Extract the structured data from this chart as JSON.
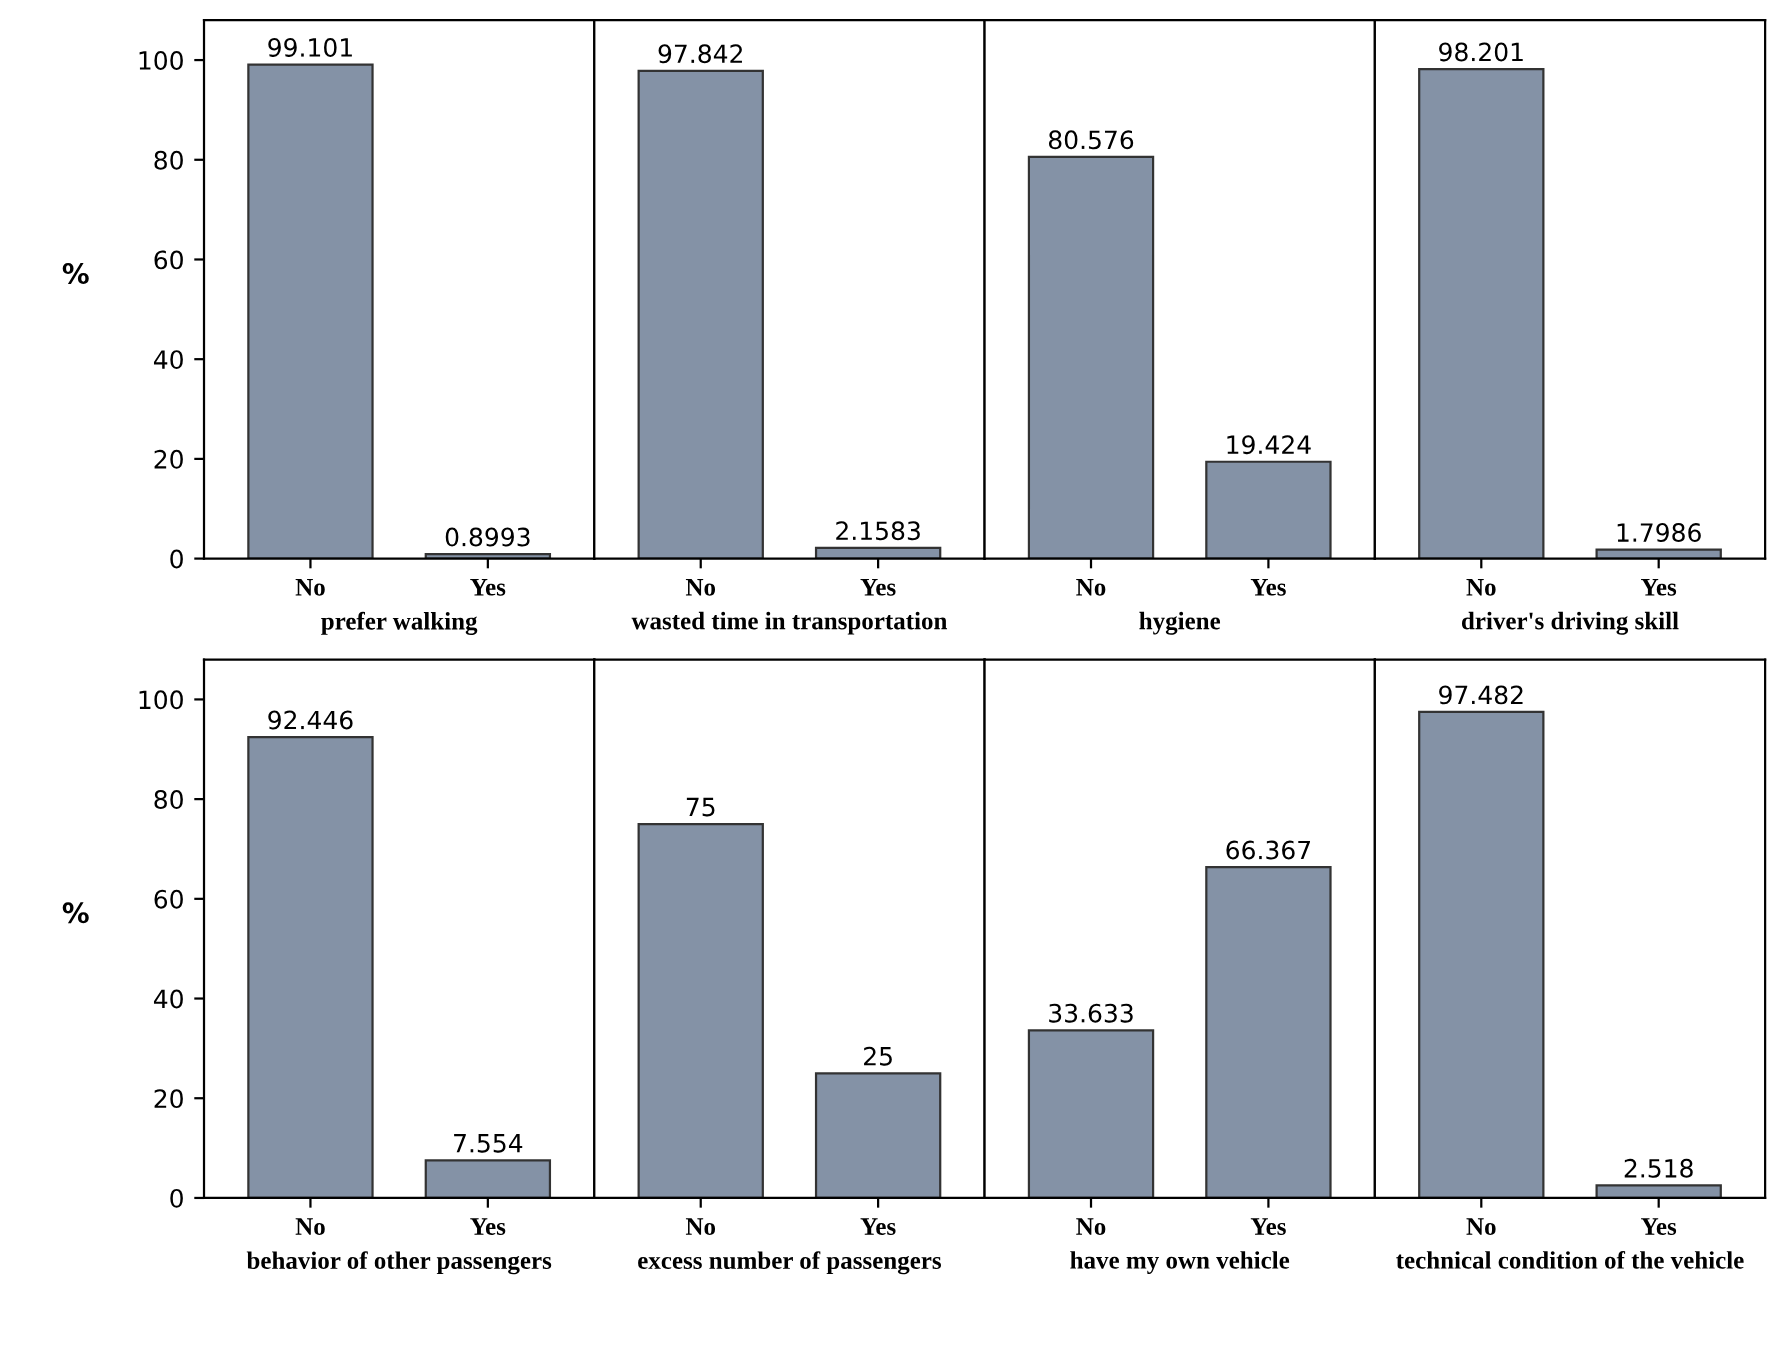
{
  "chart_data": [
    {
      "type": "bar",
      "xlabel": "prefer walking",
      "ylabel": "%",
      "categories": [
        "No",
        "Yes"
      ],
      "values": [
        99.101,
        0.8993
      ],
      "color": "#8492a6",
      "ylim": [
        0,
        108
      ],
      "yticks": [
        0,
        20,
        40,
        60,
        80,
        100
      ],
      "data_labels": true,
      "value_labels": [
        "99.101",
        "0.8993"
      ]
    },
    {
      "type": "bar",
      "xlabel": "wasted time in transportation",
      "categories": [
        "No",
        "Yes"
      ],
      "values": [
        97.842,
        2.1583
      ],
      "color": "#8492a6",
      "ylim": [
        0,
        108
      ],
      "yticks": [
        0,
        20,
        40,
        60,
        80,
        100
      ],
      "tick_labels": "x",
      "data_labels": true,
      "value_labels": [
        "97.842",
        "2.1583"
      ]
    },
    {
      "type": "bar",
      "xlabel": "hygiene",
      "categories": [
        "No",
        "Yes"
      ],
      "values": [
        80.576,
        19.424
      ],
      "color": "#8492a6",
      "ylim": [
        0,
        108
      ],
      "yticks": [
        0,
        20,
        40,
        60,
        80,
        100
      ],
      "tick_labels": "x",
      "data_labels": true,
      "value_labels": [
        "80.576",
        "19.424"
      ]
    },
    {
      "type": "bar",
      "xlabel": "driver's driving skill",
      "categories": [
        "No",
        "Yes"
      ],
      "values": [
        98.201,
        1.7986
      ],
      "color": "#8492a6",
      "ylim": [
        0,
        108
      ],
      "yticks": [
        0,
        20,
        40,
        60,
        80,
        100
      ],
      "tick_labels": "x",
      "data_labels": true,
      "value_labels": [
        "98.201",
        "1.7986"
      ]
    },
    {
      "type": "bar",
      "xlabel": "behavior of other passengers",
      "ylabel": "%",
      "categories": [
        "No",
        "Yes"
      ],
      "values": [
        92.446,
        7.554
      ],
      "color": "#8492a6",
      "ylim": [
        0,
        108
      ],
      "yticks": [
        0,
        20,
        40,
        60,
        80,
        100
      ],
      "data_labels": true,
      "value_labels": [
        "92.446",
        "7.554"
      ]
    },
    {
      "type": "bar",
      "xlabel": "excess number of passengers",
      "categories": [
        "No",
        "Yes"
      ],
      "values": [
        75,
        25
      ],
      "color": "#8492a6",
      "ylim": [
        0,
        108
      ],
      "yticks": [
        0,
        20,
        40,
        60,
        80,
        100
      ],
      "tick_labels": "x",
      "data_labels": true,
      "value_labels": [
        "75",
        "25"
      ]
    },
    {
      "type": "bar",
      "xlabel": "have my own vehicle",
      "categories": [
        "No",
        "Yes"
      ],
      "values": [
        33.633,
        66.367
      ],
      "color": "#8492a6",
      "ylim": [
        0,
        108
      ],
      "yticks": [
        0,
        20,
        40,
        60,
        80,
        100
      ],
      "tick_labels": "x",
      "data_labels": true,
      "value_labels": [
        "33.633",
        "66.367"
      ]
    },
    {
      "type": "bar",
      "xlabel": "technical condition of the vehicle",
      "categories": [
        "No",
        "Yes"
      ],
      "values": [
        97.482,
        2.518
      ],
      "color": "#8492a6",
      "ylim": [
        0,
        108
      ],
      "yticks": [
        0,
        20,
        40,
        60,
        80,
        100
      ],
      "tick_labels": "x",
      "data_labels": true,
      "value_labels": [
        "97.482",
        "2.518"
      ]
    }
  ]
}
